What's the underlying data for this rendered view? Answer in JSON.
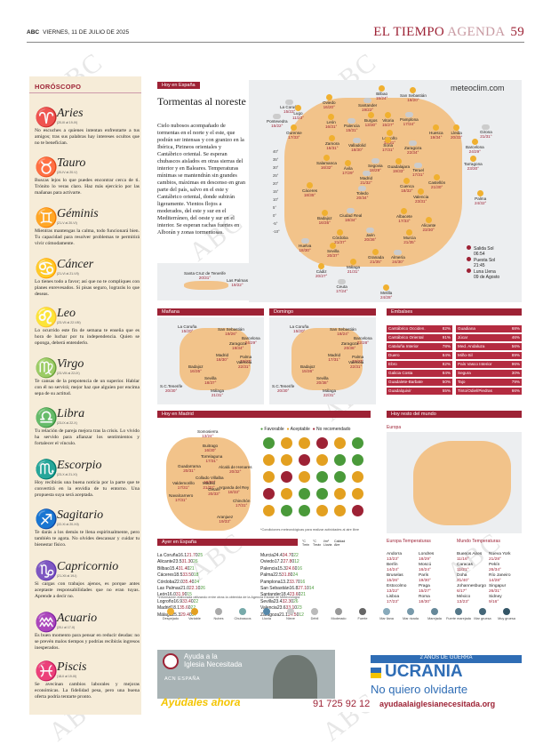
{
  "header": {
    "brand": "ABC",
    "date": "VIERNES, 11 DE JULIO DE 2025",
    "section": "EL TIEMPO",
    "subsection": "AGENDA",
    "page": "59"
  },
  "watermark": "ABC",
  "horoscope": {
    "title": "HORÓSCOPO",
    "signs": [
      {
        "sym": "♈",
        "name": "Aries",
        "dates": "(20-III al 19-IV)",
        "text": "No escuches a quienes intentan enfrentarte a tus amigos; tras sus palabras hay intereses ocultos que no te benefician."
      },
      {
        "sym": "♉",
        "name": "Tauro",
        "dates": "(20-IV al 20-V)",
        "text": "Buscas lejos lo que puedes encontrar cerca de ti. Trónito lo veras claro. Haz más ejercicio por las mañanas para activarte."
      },
      {
        "sym": "♊",
        "name": "Géminis",
        "dates": "(21-V al 20-VI)",
        "text": "Mientras mantengas la calma, todo funcionará bien. Tu capacidad para resolver problemas te permitirá vivir cómodamente."
      },
      {
        "sym": "♋",
        "name": "Cáncer",
        "dates": "(21-VI al 21-VII)",
        "text": "Lo tienes todo a favor; así que no te compliques con planes enrevesados. Si pisas seguro, lograrás lo que deseas."
      },
      {
        "sym": "♌",
        "name": "Leo",
        "dates": "(23-VII al 22-VIII)",
        "text": "Lo ocurrido este fin de semana te enseña que es hora de luchar por tu independencia. Quien se oponga, deberá entenderlo."
      },
      {
        "sym": "♍",
        "name": "Virgo",
        "dates": "(23-VIII al 22-IX)",
        "text": "Te cansas de la prepotencia de un superior. Hablar con él no servirá; mejor haz que alguien por encima sepa de su actitud."
      },
      {
        "sym": "♎",
        "name": "Libra",
        "dates": "(23-IX al 22-X)",
        "text": "Tu relación de pareja mejora tras la crisis. Lo vivido ha servido para afianzar los sentimientos y fortalecer el vínculo."
      },
      {
        "sym": "♏",
        "name": "Escorpio",
        "dates": "(23-X al 21-XI)",
        "text": "Hoy recibirás una buena noticia por la parte que te convertirá en la envidia de tu entorno. Una propuesta suya será aceptada."
      },
      {
        "sym": "♐",
        "name": "Sagitario",
        "dates": "(22-XI al 20-XII)",
        "text": "Te darás a los demás te llena espiritualmente, pero también te agota. No olvides descansar y cuidar tu bienestar físico."
      },
      {
        "sym": "♑",
        "name": "Capricornio",
        "dates": "(21-XII al 19-I)",
        "text": "Si cargas con trabajos ajenos, es porque antes aceptaste responsabilidades que no eran tuyas. Aprende a decir no."
      },
      {
        "sym": "♒",
        "name": "Acuario",
        "dates": "(20-I al 17-II)",
        "text": "Es buen momento para pensar en reducir deudas: no se prevén malos tiempos y podrías recibirás ingresos inesperados."
      },
      {
        "sym": "♓",
        "name": "Piscis",
        "dates": "(18-II al 19-III)",
        "text": "Se avecinan cambios laborales y mejoras económicas. La fidelidad pesa, pero una buena oferta podría tentarte pronto."
      }
    ]
  },
  "spain": {
    "tag": "Hoy en España",
    "headline": "Tormentas al noreste",
    "body": "Cielo nubosos acompañado de tormentas en el norte y el este, que podrán ser intensas y con granizo en la Ibérica, Pirineos orientales y Cantábrico oriental. Se esperan chubascos aislados en otras sierras del interior y en Baleares. Temperaturas mínimas se mantendrán sin grandes cambios, máximas en descenso en gran parte del país, salvo en el este y Cantábrico oriental, donde subirán ligeramente. Vientos flojos a moderados, del este y sur en el Mediterráneo, del oeste y sur en el interior. Se esperan rachas fuertes en Alborán y zonas tormentosas.",
    "brand": "meteoclim.com",
    "scale": [
      "40°",
      "35°",
      "30°",
      "25°",
      "20°",
      "15°",
      "10°",
      "5°",
      "0°",
      "-5°",
      "-10°"
    ],
    "cities": [
      {
        "n": "La Coruña",
        "t": "15/22°"
      },
      {
        "n": "Lugo",
        "t": "11/23°"
      },
      {
        "n": "Oviedo",
        "t": "16/20°"
      },
      {
        "n": "Santander",
        "t": "19/22°"
      },
      {
        "n": "Bilbao",
        "t": "15/24°"
      },
      {
        "n": "San Sebastián",
        "t": "18/20°"
      },
      {
        "n": "Pontevedra",
        "t": "15/22°"
      },
      {
        "n": "Ourense",
        "t": "17/33°"
      },
      {
        "n": "León",
        "t": "16/31°"
      },
      {
        "n": "Palencia",
        "t": "15/31°"
      },
      {
        "n": "Burgos",
        "t": "13/30°"
      },
      {
        "n": "Vitoria",
        "t": "15/27°"
      },
      {
        "n": "Pamplona",
        "t": "17/34°"
      },
      {
        "n": "Huesca",
        "t": "19/34°"
      },
      {
        "n": "Lleida",
        "t": "20/33°"
      },
      {
        "n": "Girona",
        "t": "21/31°"
      },
      {
        "n": "Barcelona",
        "t": "24/29°"
      },
      {
        "n": "Zamora",
        "t": "16/31°"
      },
      {
        "n": "Valladolid",
        "t": "18/30°"
      },
      {
        "n": "Logroño",
        "t": "19/31°"
      },
      {
        "n": "Soria",
        "t": "17/31°"
      },
      {
        "n": "Zaragoza",
        "t": "22/34°"
      },
      {
        "n": "Tarragona",
        "t": "23/30°"
      },
      {
        "n": "Salamanca",
        "t": "16/32°"
      },
      {
        "n": "Segovia",
        "t": "18/29°"
      },
      {
        "n": "Ávila",
        "t": "17/29°"
      },
      {
        "n": "Guadalajara",
        "t": "19/33°"
      },
      {
        "n": "Teruel",
        "t": "17/31°"
      },
      {
        "n": "Castellón",
        "t": "21/30°"
      },
      {
        "n": "Palma",
        "t": "24/32°"
      },
      {
        "n": "Madrid",
        "t": "21/32°"
      },
      {
        "n": "Cuenca",
        "t": "18/32°"
      },
      {
        "n": "Cáceres",
        "t": "18/35°"
      },
      {
        "n": "Toledo",
        "t": "20/34°"
      },
      {
        "n": "Valencia",
        "t": "23/31°"
      },
      {
        "n": "Badajoz",
        "t": "16/35°"
      },
      {
        "n": "Ciudad Real",
        "t": "18/34°"
      },
      {
        "n": "Albacete",
        "t": "17/33°"
      },
      {
        "n": "Alicante",
        "t": "23/30°"
      },
      {
        "n": "Jaén",
        "t": "20/36°"
      },
      {
        "n": "Murcia",
        "t": "21/35°"
      },
      {
        "n": "Córdoba",
        "t": "21/37°"
      },
      {
        "n": "Huelva",
        "t": "18/30°"
      },
      {
        "n": "Sevilla",
        "t": "20/37°"
      },
      {
        "n": "Granada",
        "t": "21/35°"
      },
      {
        "n": "Almería",
        "t": "24/30°"
      },
      {
        "n": "Málaga",
        "t": "21/31°"
      },
      {
        "n": "Cádiz",
        "t": "20/27°"
      },
      {
        "n": "Ceuta",
        "t": "17/24°"
      },
      {
        "n": "Melilla",
        "t": "24/28°"
      }
    ],
    "canarias": [
      {
        "n": "Santa Cruz de Tenerife",
        "t": "20/31°"
      },
      {
        "n": "Las Palmas",
        "t": "19/22°"
      }
    ],
    "sun": [
      {
        "label": "Salida Sol",
        "v": "06:54"
      },
      {
        "label": "Puesta Sol",
        "v": "21:45"
      },
      {
        "label": "Luna Llena",
        "v": "09 de Agosto"
      }
    ]
  },
  "manana": {
    "tag": "Mañana",
    "cities": [
      {
        "n": "La Coruña",
        "t": "15/20°"
      },
      {
        "n": "San Sebastián",
        "t": "19/26°"
      },
      {
        "n": "Barcelona",
        "t": "24/29°"
      },
      {
        "n": "Zaragoza",
        "t": "19/34°"
      },
      {
        "n": "Madrid",
        "t": "18/30°"
      },
      {
        "n": "Palma",
        "t": "23/32°"
      },
      {
        "n": "Valencia",
        "t": "22/31°"
      },
      {
        "n": "Badajoz",
        "t": "16/35°"
      },
      {
        "n": "Sevilla",
        "t": "18/37°"
      },
      {
        "n": "Málaga",
        "t": "21/31°"
      },
      {
        "n": "S.C.Tenerife",
        "t": "20/30°"
      }
    ]
  },
  "domingo": {
    "tag": "Domingo",
    "cities": [
      {
        "n": "La Coruña",
        "t": "15/20°"
      },
      {
        "n": "San Sebastián",
        "t": "18/24°"
      },
      {
        "n": "Barcelona",
        "t": "22/28°"
      },
      {
        "n": "Zaragoza",
        "t": "20/36°"
      },
      {
        "n": "Madrid",
        "t": "17/31°"
      },
      {
        "n": "Palma",
        "t": "23/32°"
      },
      {
        "n": "Valencia",
        "t": "22/31°"
      },
      {
        "n": "Badajoz",
        "t": "15/36°"
      },
      {
        "n": "Sevilla",
        "t": "20/38°"
      },
      {
        "n": "Málaga",
        "t": "22/31°"
      },
      {
        "n": "S.C.Tenerife",
        "t": "20/30°"
      }
    ]
  },
  "embalses": {
    "tag": "Embalses",
    "left": [
      [
        "Cantábrico Occiden.",
        "82%"
      ],
      [
        "Cantábrico Oriental",
        "91%"
      ],
      [
        "Cataluña Interior",
        "78%"
      ],
      [
        "Duero",
        "84%"
      ],
      [
        "Ebro",
        "82%"
      ],
      [
        "Galicia Costa",
        "84%"
      ],
      [
        "Guadalete-Barbate",
        "50%"
      ],
      [
        "Guadalquivir",
        "55%"
      ]
    ],
    "right": [
      [
        "Guadiana",
        "68%"
      ],
      [
        "Júcar",
        "46%"
      ],
      [
        "Med. Andaluza",
        "56%"
      ],
      [
        "Miño-Sil",
        "89%"
      ],
      [
        "País Vasco Interior",
        "96%"
      ],
      [
        "Segura",
        "30%"
      ],
      [
        "Tajo",
        "79%"
      ],
      [
        "Tinto/Odiel/Piedras",
        "66%"
      ]
    ]
  },
  "madrid": {
    "tag": "Hoy en Madrid",
    "legend": [
      "Favorable",
      "Aceptable",
      "No recomendado"
    ],
    "note": "*Condiciones meteorológicas para realizar actividades al aire libre",
    "cities": [
      {
        "n": "Somosierra",
        "t": "13/24°"
      },
      {
        "n": "Buitrago",
        "t": "16/30°"
      },
      {
        "n": "Torrelaguna",
        "t": "17/31°"
      },
      {
        "n": "Guadarrama",
        "t": "20/31°"
      },
      {
        "n": "Alcalá de Henares",
        "t": "20/32°"
      },
      {
        "n": "Collado Villalba",
        "t": "18/32°"
      },
      {
        "n": "Madrid",
        "t": "21/32°"
      },
      {
        "n": "Valdemorillo",
        "t": "17/31°"
      },
      {
        "n": "Arganda del Rey",
        "t": "18/33°"
      },
      {
        "n": "Navalcarnero",
        "t": "17/31°"
      },
      {
        "n": "Getafe",
        "t": "20/33°"
      },
      {
        "n": "Chinchón",
        "t": "17/31°"
      },
      {
        "n": "Aranjuez",
        "t": "19/33°"
      }
    ]
  },
  "mundo": {
    "tag": "Hoy resto del mundo",
    "region": "Europa",
    "europa_title": "Europa Temperaturas",
    "mundo_title": "Mundo Temperaturas",
    "europa": [
      [
        "Andorra",
        "13/23°"
      ],
      [
        "Londres",
        "18/29°"
      ],
      [
        "Berlín",
        "14/24°"
      ],
      [
        "Moscú",
        "16/24°"
      ],
      [
        "Bruselas",
        "15/26°"
      ],
      [
        "París",
        "19/30°"
      ],
      [
        "Estocolmo",
        "13/22°"
      ],
      [
        "Praga",
        "15/27°"
      ],
      [
        "Lisboa",
        "17/23°"
      ],
      [
        "Roma",
        "18/30°"
      ]
    ],
    "mundo": [
      [
        "Buenos Aires",
        "11/16°"
      ],
      [
        "Nueva York",
        "21/28°"
      ],
      [
        "Caracas",
        "11/21°"
      ],
      [
        "Pekín",
        "26/34°"
      ],
      [
        "Doha",
        "31/40°"
      ],
      [
        "Río Janeiro",
        "14/28°"
      ],
      [
        "Johannesburgo",
        "6/17°"
      ],
      [
        "Singapur",
        "26/31°"
      ],
      [
        "México",
        "13/23°"
      ],
      [
        "Sidney",
        "9/16°"
      ]
    ]
  },
  "ayer": {
    "tag": "Ayer en España",
    "headers": [
      "°C Tmin",
      "°C Tmáx",
      "l/m² Lluvia",
      "Calidad Aire"
    ],
    "left": [
      [
        "La Coruña",
        "16.1",
        "21.7",
        "0",
        "25"
      ],
      [
        "Alicante",
        "23.5",
        "31.3",
        "0",
        "26"
      ],
      [
        "Bilbao",
        "15.4",
        "31.4",
        "0",
        "21"
      ],
      [
        "Cáceres",
        "18.5",
        "33.5",
        "0",
        "18"
      ],
      [
        "Córdoba",
        "22.0",
        "35.4",
        "0",
        "24"
      ],
      [
        "Las Palmas",
        "21.0",
        "22.1",
        "0",
        "26"
      ],
      [
        "León",
        "16.0",
        "31.9",
        "0",
        "15"
      ],
      [
        "Logroño",
        "16.9",
        "33.4",
        "0",
        "22"
      ],
      [
        "Madrid",
        "18.1",
        "35.6",
        "0",
        "22"
      ],
      [
        "Málaga",
        "25.3",
        "29.4",
        "0",
        "37"
      ]
    ],
    "right": [
      [
        "Murcia",
        "24.4",
        "34.7",
        "0",
        "22"
      ],
      [
        "Oviedo",
        "17.2",
        "27.8",
        "0",
        "12"
      ],
      [
        "Palencia",
        "15.3",
        "24.6",
        "0",
        "16"
      ],
      [
        "Palma",
        "22.5",
        "31.8",
        "0",
        "24"
      ],
      [
        "Pamplona",
        "13.2",
        "33.7",
        "0",
        "16"
      ],
      [
        "San Sebastián",
        "16.8",
        "27.1",
        "0",
        "14"
      ],
      [
        "Santander",
        "18.4",
        "23.6",
        "0",
        "21"
      ],
      [
        "Sevilla",
        "23.4",
        "32.3",
        "0",
        "26"
      ],
      [
        "Valencia",
        "23.6",
        "33.1",
        "0",
        "23"
      ],
      [
        "Zaragoza",
        "21.1",
        "34.5",
        "0",
        "12"
      ]
    ],
    "note": "*Información elaborada utilizando entre otras la obtenida de la Agencia Estatal de Meteorología"
  },
  "icons": [
    "Despejado",
    "Variable",
    "Nubes",
    "Chubascos",
    "Lluvia",
    "Nieve",
    "Débil",
    "Moderado",
    "Fuerte",
    "Mar llana",
    "Mar rizada",
    "Marejada",
    "Fuerte marejada",
    "Mar gruesa",
    "Muy gruesa"
  ],
  "ad": {
    "org1": "Ayuda a la",
    "org2": "Iglesia Necesitada",
    "acn": "ACN ESPAÑA",
    "years": "2 AÑOS DE GUERRA",
    "country": "UCRANIA",
    "slogan": "No quiero olvidarte",
    "cta": "Ayúdales ahora",
    "phone": "91 725 92 12",
    "web": "ayudaalaiglesianecesitada.org"
  },
  "colors": {
    "accent": "#9d2235",
    "horoscope_bg": "#f6ecd8",
    "map_land": "#f2c38a",
    "sea": "#eceef0",
    "sign_icons": "#2a3a7a"
  }
}
